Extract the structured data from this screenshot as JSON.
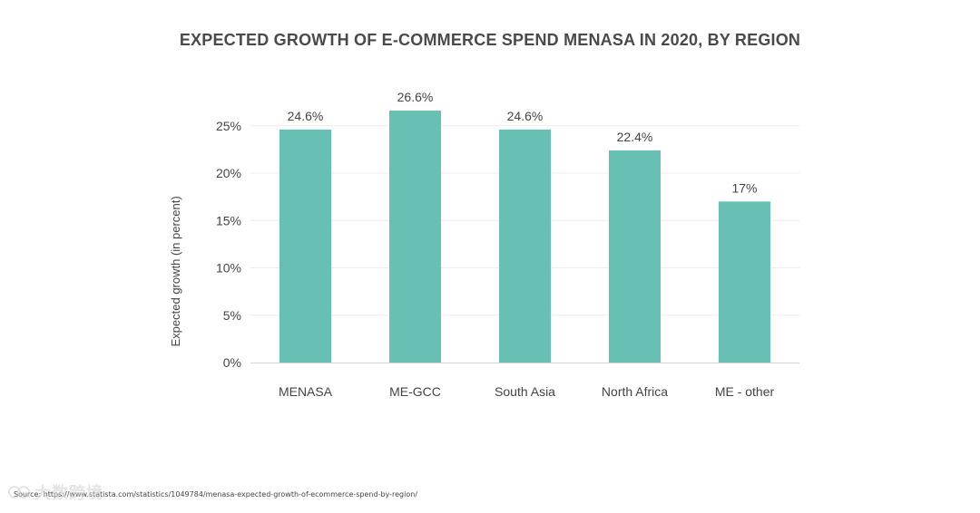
{
  "title": "EXPECTED GROWTH OF E-COMMERCE SPEND MENASA IN 2020, BY REGION",
  "source": "Source: https://www.statista.com/statistics/1049784/menasa-expected-growth-of-ecommerce-spend-by-region/",
  "watermark": "大数跨境",
  "colors": {
    "bar": "#68c0b4",
    "grid": "#ececec",
    "axis": "#d5d5d5",
    "text": "#444444",
    "title": "#4a4a4a"
  },
  "chart_data": {
    "type": "bar",
    "title": "EXPECTED GROWTH OF E-COMMERCE SPEND MENASA IN 2020, BY REGION",
    "xlabel": "",
    "ylabel": "Expected growth (in percent)",
    "categories": [
      "MENASA",
      "ME-GCC",
      "South Asia",
      "North Africa",
      "ME - other"
    ],
    "values": [
      24.6,
      26.6,
      24.6,
      22.4,
      17
    ],
    "value_labels": [
      "24.6%",
      "26.6%",
      "24.6%",
      "22.4%",
      "17%"
    ],
    "yticks": [
      0,
      5,
      10,
      15,
      20,
      25
    ],
    "ytick_labels": [
      "0%",
      "5%",
      "10%",
      "15%",
      "20%",
      "25%"
    ],
    "ylim": [
      0,
      27.5
    ],
    "grid": true,
    "legend": "none"
  }
}
